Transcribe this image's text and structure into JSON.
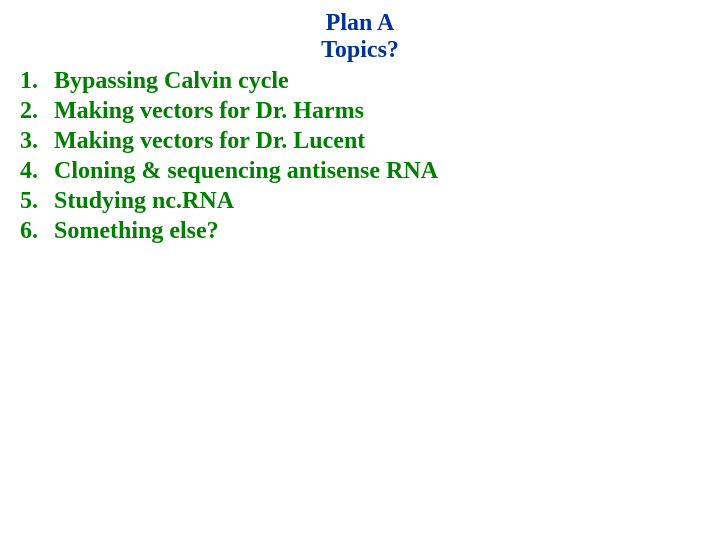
{
  "title": "Plan A",
  "subtitle": "Topics?",
  "title_color": "#003399",
  "item_color": "#008000",
  "background_color": "#ffffff",
  "font_family": "Times New Roman",
  "title_fontsize": 24,
  "item_fontsize": 24,
  "items": [
    {
      "number": "1.",
      "text": "Bypassing Calvin cycle"
    },
    {
      "number": "2.",
      "text": "Making vectors for Dr. Harms"
    },
    {
      "number": "3.",
      "text": "Making vectors for Dr. Lucent"
    },
    {
      "number": "4.",
      "text": "Cloning & sequencing antisense RNA"
    },
    {
      "number": "5.",
      "text": "Studying nc.RNA"
    },
    {
      "number": "6.",
      "text": "Something else?"
    }
  ]
}
